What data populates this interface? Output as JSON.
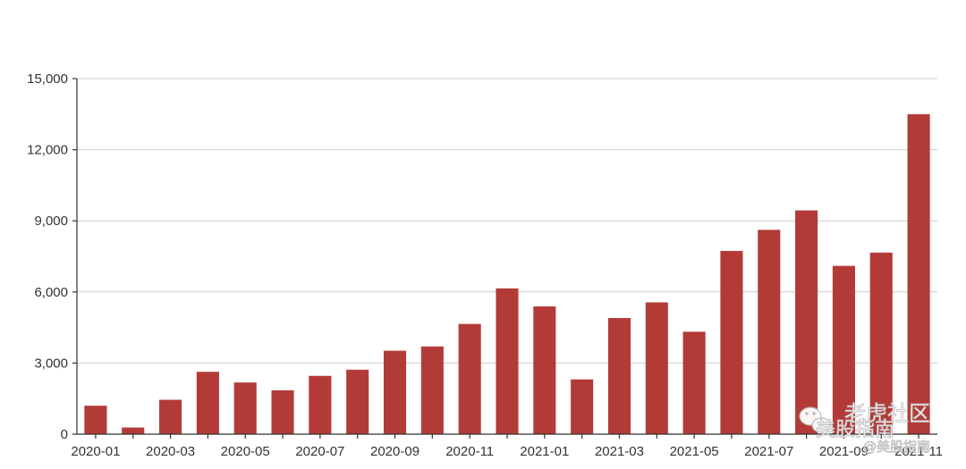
{
  "chart_data": {
    "type": "bar",
    "title": "",
    "xlabel": "",
    "ylabel": "",
    "ylim": [
      0,
      15000
    ],
    "yticks": [
      "0",
      "3,000",
      "6,000",
      "9,000",
      "12,000",
      "15,000"
    ],
    "ytick_values": [
      0,
      3000,
      6000,
      9000,
      12000,
      15000
    ],
    "grid": true,
    "color": "#b33b37",
    "categories": [
      "2020-01",
      "2020-02",
      "2020-03",
      "2020-04",
      "2020-05",
      "2020-06",
      "2020-07",
      "2020-08",
      "2020-09",
      "2020-10",
      "2020-11",
      "2020-12",
      "2021-01",
      "2021-02",
      "2021-03",
      "2021-04",
      "2021-05",
      "2021-06",
      "2021-07",
      "2021-08",
      "2021-09",
      "2021-10",
      "2021-11"
    ],
    "xtick_labels": [
      "2020-01",
      "2020-03",
      "2020-05",
      "2020-07",
      "2020-09",
      "2020-11",
      "2021-01",
      "2021-03",
      "2021-05",
      "2021-07",
      "2021-09",
      "2021-11"
    ],
    "values": [
      1200,
      280,
      1450,
      2630,
      2180,
      1850,
      2460,
      2720,
      3520,
      3700,
      4650,
      6150,
      5390,
      2310,
      4900,
      5560,
      4320,
      7730,
      8620,
      9440,
      7100,
      7660,
      13500
    ]
  },
  "watermark": {
    "icon": "wechat-icon",
    "line1": "老虎社区",
    "line2": "美股指南",
    "line3": "@美股指南"
  }
}
